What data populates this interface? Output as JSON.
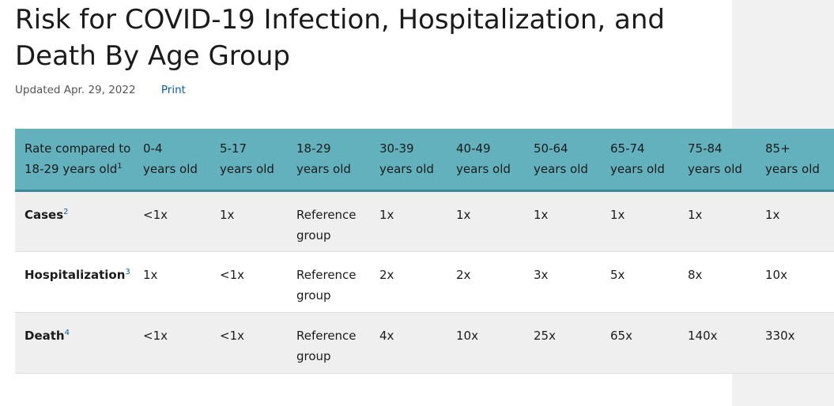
{
  "page": {
    "title": "Risk for COVID-19 Infection, Hospitalization, and Death By Age Group",
    "updated": "Updated Apr. 29, 2022",
    "print_label": "Print"
  },
  "table": {
    "header_label": "Rate compared to 18-29 years old",
    "header_footnote": "1",
    "columns": [
      {
        "range": "0-4",
        "unit": "years old"
      },
      {
        "range": "5-17",
        "unit": "years old"
      },
      {
        "range": "18-29",
        "unit": "years old"
      },
      {
        "range": "30-39",
        "unit": "years old"
      },
      {
        "range": "40-49",
        "unit": "years old"
      },
      {
        "range": "50-64",
        "unit": "years old"
      },
      {
        "range": "65-74",
        "unit": "years old"
      },
      {
        "range": "75-84",
        "unit": "years old"
      },
      {
        "range": "85+",
        "unit": "years old"
      }
    ],
    "rows": [
      {
        "label": "Cases",
        "footnote": "2",
        "values": [
          "<1x",
          "1x",
          "Reference group",
          "1x",
          "1x",
          "1x",
          "1x",
          "1x",
          "1x"
        ]
      },
      {
        "label": "Hospitalization",
        "footnote": "3",
        "values": [
          "1x",
          "<1x",
          "Reference group",
          "2x",
          "2x",
          "3x",
          "5x",
          "8x",
          "10x"
        ]
      },
      {
        "label": "Death",
        "footnote": "4",
        "values": [
          "<1x",
          "<1x",
          "Reference group",
          "4x",
          "10x",
          "25x",
          "65x",
          "140x",
          "330x"
        ]
      }
    ]
  }
}
